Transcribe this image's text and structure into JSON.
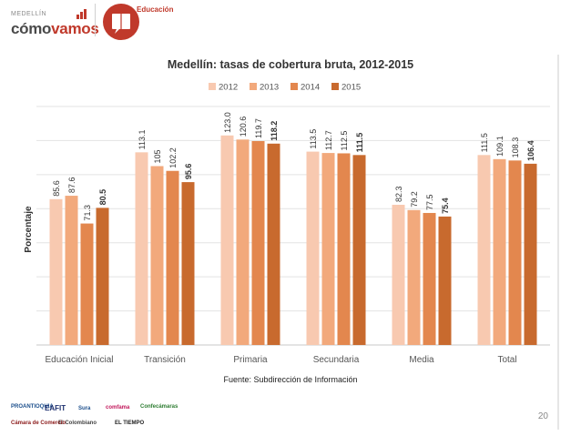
{
  "header": {
    "org_small": "MEDELLÍN",
    "org_big_part1": "cómo",
    "org_big_part2": "vamos",
    "section": "Educación"
  },
  "chart_data": {
    "type": "bar",
    "title": "Medellín: tasas de cobertura bruta, 2012-2015",
    "ylabel": "Porcentaje",
    "xlabel": "",
    "ylim": [
      0,
      140
    ],
    "categories": [
      "Educación Inicial",
      "Transición",
      "Primaria",
      "Secundaria",
      "Media",
      "Total"
    ],
    "series": [
      {
        "name": "2012",
        "color": "#f8c9b0",
        "values": [
          85.6,
          113.1,
          123.0,
          113.5,
          82.3,
          111.5
        ],
        "labels": [
          "85.6",
          "113.1",
          "123.0",
          "113.5",
          "82.3",
          "111.5"
        ],
        "bold": false
      },
      {
        "name": "2013",
        "color": "#f2a97c",
        "values": [
          87.6,
          105,
          120.6,
          112.7,
          79.2,
          109.1
        ],
        "labels": [
          "87.6",
          "105",
          "120.6",
          "112.7",
          "79.2",
          "109.1"
        ],
        "bold": false
      },
      {
        "name": "2014",
        "color": "#e3874e",
        "values": [
          71.3,
          102.2,
          119.7,
          112.5,
          77.5,
          108.3
        ],
        "labels": [
          "71.3",
          "102.2",
          "119.7",
          "112.5",
          "77.5",
          "108.3"
        ],
        "bold": false
      },
      {
        "name": "2015",
        "color": "#c86a2e",
        "values": [
          80.5,
          95.6,
          118.2,
          111.5,
          75.4,
          106.4
        ],
        "labels": [
          "80.5",
          "95.6",
          "118.2",
          "111.5",
          "75.4",
          "106.4"
        ],
        "bold": true
      }
    ],
    "grid": true,
    "legend": "top-center",
    "source": "Fuente: Subdirección de Información"
  },
  "footer": {
    "page_number": "20",
    "partners": [
      "PROANTIOQUIA",
      "EAFIT",
      "Sura",
      "comfama",
      "Confecámaras",
      "El Colombiano",
      "EL TIEMPO",
      "Cámara de Comercio"
    ]
  }
}
